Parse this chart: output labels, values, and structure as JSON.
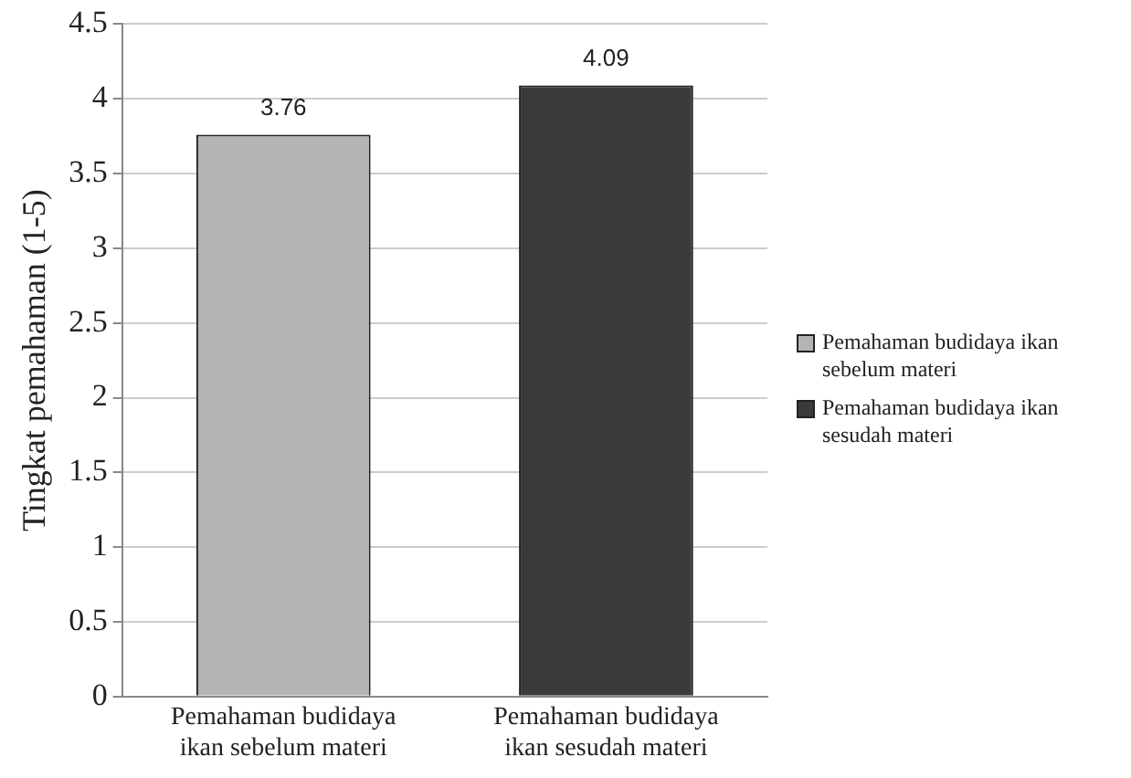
{
  "chart_data": {
    "type": "bar",
    "ylabel": "Tingkat pemahaman (1-5)",
    "categories": [
      "Pemahaman budidaya ikan sebelum materi",
      "Pemahaman budidaya ikan sesudah materi"
    ],
    "series": [
      {
        "name": "Pemahaman budidaya ikan sebelum materi",
        "color": "#b4b4b4",
        "values": [
          3.76,
          null
        ]
      },
      {
        "name": "Pemahaman budidaya ikan sesudah materi",
        "color": "#3a3a3a",
        "values": [
          null,
          4.09
        ]
      }
    ],
    "ylim": [
      0,
      4.5
    ],
    "yticks": [
      0,
      0.5,
      1,
      1.5,
      2,
      2.5,
      3,
      3.5,
      4,
      4.5
    ],
    "grid": "y",
    "legend": "right",
    "data_labels": true
  }
}
